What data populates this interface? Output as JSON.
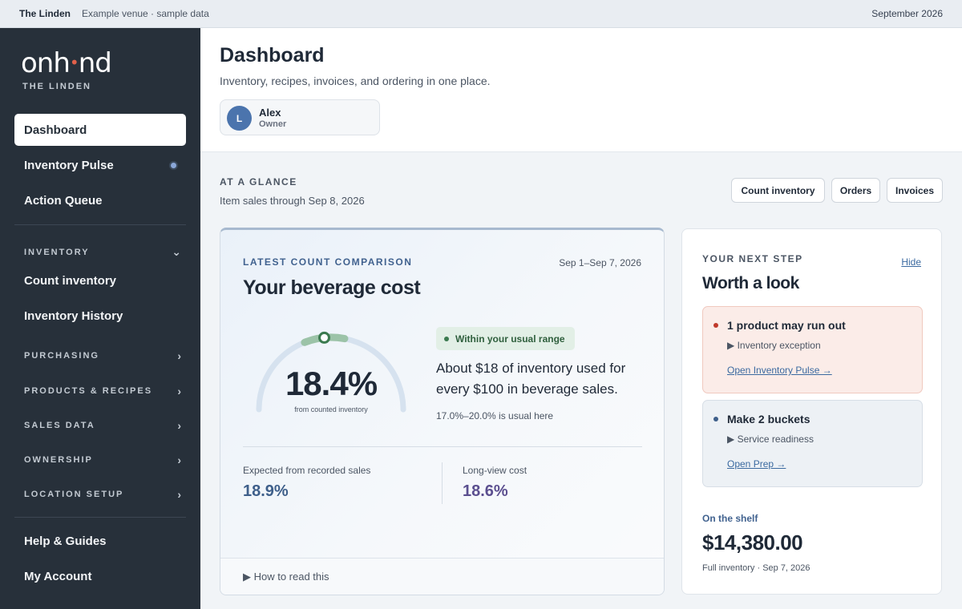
{
  "topbar": {
    "venue": "The Linden",
    "subtitle": "Example venue · sample data",
    "month": "September 2026"
  },
  "sidebar": {
    "logo_left": "onh",
    "logo_dot": "•",
    "logo_right": "nd",
    "venue_name": "THE LINDEN",
    "nav": {
      "dashboard": "Dashboard",
      "inventory_pulse": "Inventory Pulse",
      "action_queue": "Action Queue"
    },
    "inventory_section": "INVENTORY",
    "inventory_items": {
      "count": "Count inventory",
      "history": "Inventory History"
    },
    "sections": {
      "purchasing": "PURCHASING",
      "products_recipes": "PRODUCTS & RECIPES",
      "sales_data": "SALES DATA",
      "ownership": "OWNERSHIP",
      "location_setup": "LOCATION SETUP"
    },
    "footer": {
      "help": "Help & Guides",
      "account": "My Account"
    },
    "icons": {
      "expanded": "chevron-down-icon",
      "collapsed": "chevron-right-icon"
    }
  },
  "header": {
    "title": "Dashboard",
    "subtitle": "Inventory, recipes, invoices, and ordering in one place.",
    "user": {
      "initial": "L",
      "name": "Alex",
      "role": "Owner"
    }
  },
  "glance": {
    "title": "AT A GLANCE",
    "subtitle": "Item sales through Sep 8, 2026",
    "buttons": {
      "count": "Count inventory",
      "orders": "Orders",
      "invoices": "Invoices"
    }
  },
  "cost_card": {
    "eyebrow": "LATEST COUNT COMPARISON",
    "date_range": "Sep 1–Sep 7, 2026",
    "title": "Your beverage cost",
    "gauge_value": "18.4%",
    "gauge_fraction": 0.47,
    "gauge_caption": "from counted inventory",
    "range_pill": "Within your usual range",
    "explanation": "About $18 of inventory used for every $100 in beverage sales.",
    "usual_range": "17.0%–20.0% is usual here",
    "expected_label": "Expected from recorded sales",
    "expected_value": "18.9%",
    "longview_label": "Long-view cost",
    "longview_value": "18.6%",
    "footer": "▶ How to read this",
    "colors": {
      "expected": "#3e5f8a",
      "longview": "#5b4f8f",
      "gauge_track": "#d6e2ef",
      "gauge_band": "#9cc3a8",
      "marker": "#3b7a4f"
    }
  },
  "next_step": {
    "eyebrow": "YOUR NEXT STEP",
    "hide": "Hide",
    "title": "Worth a look",
    "alert": {
      "title": "1 product may run out",
      "sub": "▶ Inventory exception",
      "link": "Open Inventory Pulse →",
      "color": "#c0392b"
    },
    "info": {
      "title": "Make 2 buckets",
      "sub": "▶ Service readiness",
      "link": "Open Prep →",
      "color": "#3e5f8a"
    },
    "shelf_label": "On the shelf",
    "shelf_value": "$14,380.00",
    "shelf_sub": "Full inventory · Sep 7, 2026"
  }
}
